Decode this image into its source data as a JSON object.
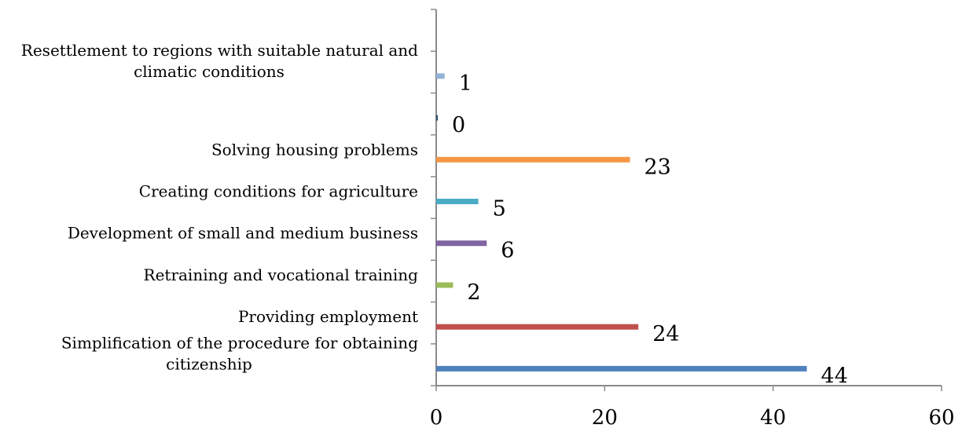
{
  "chart_data": {
    "type": "bar",
    "orientation": "horizontal",
    "xlim": [
      0,
      60
    ],
    "x_ticks": [
      0,
      20,
      40,
      60
    ],
    "grid": false,
    "legend": "none",
    "bars": [
      {
        "label": [
          "Simplification of the procedure for obtaining",
          "citizenship"
        ],
        "value": 44,
        "value_label": "44",
        "color": "#4f81bd"
      },
      {
        "label": [
          "Providing employment"
        ],
        "value": 24,
        "value_label": "24",
        "color": "#c0504d"
      },
      {
        "label": [
          "Retraining and vocational training"
        ],
        "value": 2,
        "value_label": "2",
        "color": "#9bbb59"
      },
      {
        "label": [
          "Development of small and medium business"
        ],
        "value": 6,
        "value_label": "6",
        "color": "#8064a2"
      },
      {
        "label": [
          "Creating conditions for agriculture"
        ],
        "value": 5,
        "value_label": "5",
        "color": "#4bacc6"
      },
      {
        "label": [
          "Solving housing problems"
        ],
        "value": 23,
        "value_label": "23",
        "color": "#f79646"
      },
      {
        "label": [],
        "value": 0,
        "value_label": "0",
        "color": "#2c4d75"
      },
      {
        "label": [
          "Resettlement to regions with suitable natural and",
          "climatic conditions"
        ],
        "value": 1,
        "value_label": "1",
        "color": "#95b3d7"
      }
    ]
  }
}
